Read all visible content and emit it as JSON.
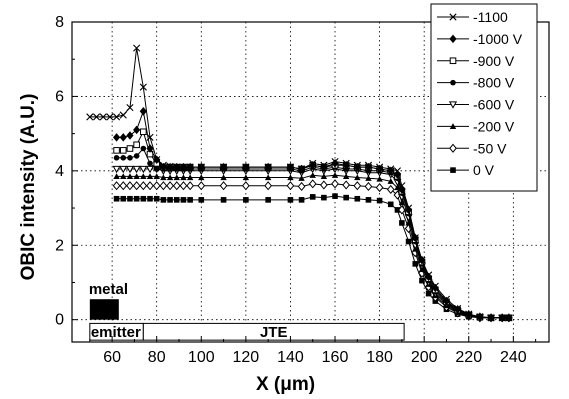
{
  "chart_data": {
    "type": "line",
    "xlabel": "X (μm)",
    "ylabel": "OBIC intensity (A.U.)",
    "xlim": [
      42,
      256
    ],
    "ylim": [
      -0.6,
      8
    ],
    "xticks": [
      60,
      80,
      100,
      120,
      140,
      160,
      180,
      200,
      220,
      240
    ],
    "yticks": [
      0,
      2,
      4,
      6,
      8
    ],
    "grid": true,
    "legend_position": "top-right",
    "annotations": {
      "metal": "metal",
      "emitter": "emitter",
      "jte": "JTE"
    },
    "regions": {
      "metal": [
        50,
        63
      ],
      "emitter": [
        50,
        74
      ],
      "jte": [
        74,
        191
      ]
    },
    "series": [
      {
        "name": "-1100",
        "marker": "x",
        "x": [
          50,
          53,
          56,
          59,
          62,
          65,
          68,
          71,
          74,
          77,
          80,
          83,
          86,
          89,
          92,
          95,
          100,
          110,
          120,
          130,
          140,
          145,
          150,
          155,
          160,
          165,
          170,
          175,
          180,
          185,
          188,
          190,
          193,
          196,
          199,
          202,
          205,
          210,
          215,
          220,
          225,
          230,
          235,
          238
        ],
        "y": [
          5.45,
          5.45,
          5.45,
          5.45,
          5.45,
          5.5,
          5.7,
          7.3,
          6.25,
          4.9,
          4.3,
          4.15,
          4.12,
          4.1,
          4.1,
          4.1,
          4.1,
          4.1,
          4.1,
          4.1,
          4.1,
          4.05,
          4.2,
          4.15,
          4.25,
          4.2,
          4.15,
          4.15,
          4.1,
          4.05,
          4.0,
          3.6,
          3.0,
          2.2,
          1.6,
          1.2,
          0.9,
          0.55,
          0.3,
          0.15,
          0.08,
          0.05,
          0.05,
          0.05
        ]
      },
      {
        "name": "-1000 V",
        "marker": "diamond-filled",
        "x": [
          62,
          65,
          68,
          71,
          74,
          77,
          80,
          83,
          86,
          89,
          92,
          95,
          100,
          110,
          120,
          130,
          140,
          145,
          150,
          155,
          160,
          165,
          170,
          175,
          180,
          185,
          188,
          190,
          193,
          196,
          199,
          202,
          205,
          210,
          215,
          220,
          225,
          230,
          235,
          238
        ],
        "y": [
          4.9,
          4.9,
          4.95,
          5.1,
          5.6,
          4.6,
          4.3,
          4.1,
          4.1,
          4.1,
          4.1,
          4.1,
          4.1,
          4.1,
          4.1,
          4.1,
          4.1,
          4.05,
          4.15,
          4.1,
          4.2,
          4.15,
          4.1,
          4.1,
          4.05,
          4.0,
          3.9,
          3.5,
          2.95,
          2.2,
          1.6,
          1.15,
          0.85,
          0.5,
          0.28,
          0.14,
          0.08,
          0.05,
          0.05,
          0.05
        ]
      },
      {
        "name": "-900 V",
        "marker": "square-open",
        "x": [
          62,
          65,
          68,
          71,
          74,
          77,
          80,
          83,
          86,
          89,
          92,
          95,
          100,
          110,
          120,
          130,
          140,
          145,
          150,
          155,
          160,
          165,
          170,
          175,
          180,
          185,
          188,
          190,
          193,
          196,
          199,
          202,
          205,
          210,
          215,
          220,
          225,
          230,
          235,
          238
        ],
        "y": [
          4.55,
          4.55,
          4.6,
          4.7,
          5.05,
          4.45,
          4.2,
          4.1,
          4.1,
          4.1,
          4.1,
          4.1,
          4.1,
          4.1,
          4.1,
          4.1,
          4.1,
          4.05,
          4.15,
          4.1,
          4.15,
          4.15,
          4.1,
          4.1,
          4.05,
          4.0,
          3.85,
          3.45,
          2.9,
          2.15,
          1.55,
          1.1,
          0.8,
          0.48,
          0.26,
          0.13,
          0.07,
          0.05,
          0.05,
          0.05
        ]
      },
      {
        "name": "-800 V",
        "marker": "circle-filled",
        "x": [
          62,
          65,
          68,
          71,
          74,
          77,
          80,
          83,
          86,
          89,
          92,
          95,
          100,
          110,
          120,
          130,
          140,
          145,
          150,
          155,
          160,
          165,
          170,
          175,
          180,
          185,
          188,
          190,
          193,
          196,
          199,
          202,
          205,
          210,
          215,
          220,
          225,
          230,
          235,
          238
        ],
        "y": [
          4.35,
          4.35,
          4.35,
          4.4,
          4.6,
          4.2,
          4.05,
          4.05,
          4.05,
          4.05,
          4.05,
          4.05,
          4.05,
          4.05,
          4.05,
          4.05,
          4.05,
          4.0,
          4.1,
          4.05,
          4.1,
          4.05,
          4.05,
          4.0,
          4.0,
          3.95,
          3.8,
          3.4,
          2.85,
          2.1,
          1.5,
          1.05,
          0.75,
          0.45,
          0.24,
          0.12,
          0.07,
          0.05,
          0.05,
          0.05
        ]
      },
      {
        "name": "-600 V",
        "marker": "triangle-down-open",
        "x": [
          62,
          65,
          68,
          71,
          74,
          77,
          80,
          83,
          86,
          89,
          92,
          95,
          100,
          110,
          120,
          130,
          140,
          145,
          150,
          155,
          160,
          165,
          170,
          175,
          180,
          185,
          188,
          190,
          193,
          196,
          199,
          202,
          205,
          210,
          215,
          220,
          225,
          230,
          235,
          238
        ],
        "y": [
          4.05,
          4.05,
          4.05,
          4.05,
          4.05,
          4.05,
          4.05,
          4.0,
          4.0,
          4.0,
          4.0,
          4.0,
          4.0,
          4.0,
          4.0,
          4.0,
          4.0,
          3.95,
          4.05,
          4.0,
          4.05,
          4.0,
          4.0,
          3.95,
          3.95,
          3.9,
          3.7,
          3.3,
          2.75,
          2.0,
          1.45,
          1.0,
          0.7,
          0.42,
          0.22,
          0.11,
          0.06,
          0.05,
          0.05,
          0.05
        ]
      },
      {
        "name": "-200 V",
        "marker": "triangle-up-filled",
        "x": [
          62,
          65,
          68,
          71,
          74,
          77,
          80,
          83,
          86,
          89,
          92,
          95,
          100,
          110,
          120,
          130,
          140,
          145,
          150,
          155,
          160,
          165,
          170,
          175,
          180,
          185,
          188,
          190,
          193,
          196,
          199,
          202,
          205,
          210,
          215,
          220,
          225,
          230,
          235,
          238
        ],
        "y": [
          3.85,
          3.85,
          3.85,
          3.85,
          3.85,
          3.85,
          3.85,
          3.82,
          3.82,
          3.82,
          3.82,
          3.82,
          3.82,
          3.82,
          3.82,
          3.82,
          3.82,
          3.8,
          3.88,
          3.85,
          3.88,
          3.85,
          3.82,
          3.8,
          3.78,
          3.72,
          3.55,
          3.15,
          2.6,
          1.9,
          1.35,
          0.95,
          0.65,
          0.38,
          0.2,
          0.1,
          0.06,
          0.05,
          0.05,
          0.05
        ]
      },
      {
        "name": "-50 V",
        "marker": "diamond-open",
        "x": [
          62,
          65,
          68,
          71,
          74,
          77,
          80,
          83,
          86,
          89,
          92,
          95,
          100,
          110,
          120,
          130,
          140,
          145,
          150,
          155,
          160,
          165,
          170,
          175,
          180,
          185,
          188,
          190,
          193,
          196,
          199,
          202,
          205,
          210,
          215,
          220,
          225,
          230,
          235,
          238
        ],
        "y": [
          3.6,
          3.6,
          3.6,
          3.6,
          3.6,
          3.6,
          3.6,
          3.6,
          3.6,
          3.6,
          3.6,
          3.6,
          3.6,
          3.6,
          3.6,
          3.6,
          3.6,
          3.58,
          3.65,
          3.62,
          3.65,
          3.62,
          3.6,
          3.58,
          3.55,
          3.5,
          3.35,
          2.95,
          2.45,
          1.8,
          1.25,
          0.88,
          0.6,
          0.34,
          0.18,
          0.09,
          0.05,
          0.05,
          0.05,
          0.05
        ]
      },
      {
        "name": "0 V",
        "marker": "square-filled",
        "x": [
          62,
          65,
          68,
          71,
          74,
          77,
          80,
          83,
          86,
          89,
          92,
          95,
          100,
          110,
          120,
          130,
          140,
          145,
          150,
          155,
          160,
          165,
          170,
          175,
          180,
          185,
          188,
          190,
          193,
          196,
          199,
          202,
          205,
          210,
          215,
          220,
          225,
          230,
          235,
          238
        ],
        "y": [
          3.25,
          3.25,
          3.25,
          3.25,
          3.25,
          3.25,
          3.25,
          3.22,
          3.22,
          3.22,
          3.22,
          3.22,
          3.22,
          3.22,
          3.22,
          3.22,
          3.22,
          3.22,
          3.3,
          3.28,
          3.32,
          3.28,
          3.25,
          3.22,
          3.2,
          3.1,
          2.95,
          2.6,
          2.1,
          1.5,
          1.05,
          0.7,
          0.5,
          0.28,
          0.15,
          0.08,
          0.05,
          0.05,
          0.05,
          0.05
        ]
      }
    ]
  }
}
